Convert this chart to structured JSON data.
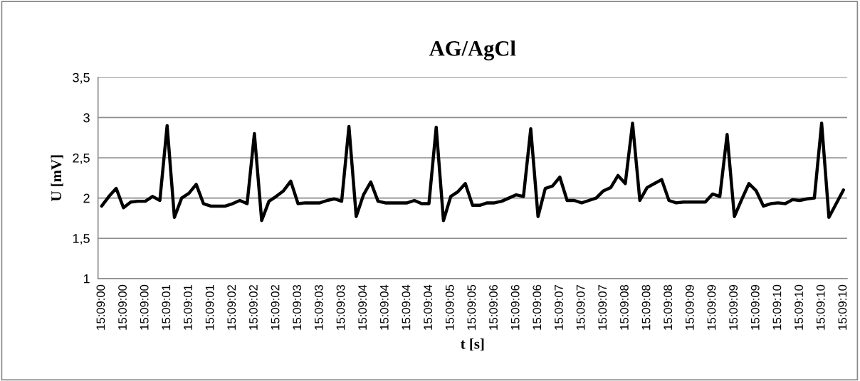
{
  "chart_data": {
    "type": "line",
    "title": "AG/AgCl",
    "xlabel": "t [s]",
    "ylabel": "U [mV]",
    "categories": [
      "15:09:00",
      null,
      null,
      "15:09:00",
      null,
      null,
      "15:09:00",
      null,
      null,
      "15:09:01",
      null,
      null,
      "15:09:01",
      null,
      null,
      "15:09:01",
      null,
      null,
      "15:09:02",
      null,
      null,
      "15:09:02",
      null,
      null,
      "15:09:02",
      null,
      null,
      "15:09:03",
      null,
      null,
      "15:09:03",
      null,
      null,
      "15:09:03",
      null,
      null,
      "15:09:04",
      null,
      null,
      "15:09:04",
      null,
      null,
      "15:09:04",
      null,
      null,
      "15:09:04",
      null,
      null,
      "15:09:05",
      null,
      null,
      "15:09:05",
      null,
      null,
      "15:09:06",
      null,
      null,
      "15:09:06",
      null,
      null,
      "15:09:06",
      null,
      null,
      "15:09:07",
      null,
      null,
      "15:09:07",
      null,
      null,
      "15:09:07",
      null,
      null,
      "15:09:08",
      null,
      null,
      "15:09:08",
      null,
      null,
      "15:09:08",
      null,
      null,
      "15:09:09",
      null,
      null,
      "15:09:09",
      null,
      null,
      "15:09:09",
      null,
      null,
      "15:09:09",
      null,
      null,
      "15:09:10",
      null,
      null,
      "15:09:10",
      null,
      null,
      "15:09:10",
      null,
      null,
      "15:09:10"
    ],
    "series": [
      {
        "color": "#000000",
        "values": [
          1.9,
          2.02,
          2.12,
          1.88,
          1.95,
          1.96,
          1.96,
          2.02,
          1.97,
          2.9,
          1.76,
          2.0,
          2.06,
          2.17,
          1.93,
          1.9,
          1.9,
          1.9,
          1.93,
          1.97,
          1.93,
          2.8,
          1.72,
          1.96,
          2.02,
          2.09,
          2.21,
          1.93,
          1.94,
          1.94,
          1.94,
          1.97,
          1.99,
          1.96,
          2.89,
          1.77,
          2.04,
          2.2,
          1.96,
          1.94,
          1.94,
          1.94,
          1.94,
          1.97,
          1.93,
          1.93,
          2.88,
          1.72,
          2.02,
          2.08,
          2.18,
          1.91,
          1.91,
          1.94,
          1.94,
          1.96,
          2.0,
          2.04,
          2.02,
          2.86,
          1.77,
          2.12,
          2.15,
          2.26,
          1.97,
          1.97,
          1.94,
          1.97,
          2.0,
          2.09,
          2.13,
          2.28,
          2.18,
          2.93,
          1.97,
          2.13,
          2.18,
          2.23,
          1.97,
          1.94,
          1.95,
          1.95,
          1.95,
          1.95,
          2.05,
          2.02,
          2.79,
          1.77,
          1.98,
          2.18,
          2.09,
          1.9,
          1.93,
          1.94,
          1.93,
          1.98,
          1.97,
          1.99,
          2.0,
          2.93,
          1.76,
          1.93,
          2.1
        ]
      }
    ],
    "ylim": [
      1,
      3.5
    ],
    "yticks": [
      1,
      {
        "value": 1.5,
        "label": "1,5"
      },
      2,
      {
        "value": 2.5,
        "label": "2,5"
      },
      3,
      {
        "value": 3.5,
        "label": "3,5"
      }
    ],
    "grid": "y",
    "legend": false,
    "marker": "none",
    "line_style": "solid"
  }
}
